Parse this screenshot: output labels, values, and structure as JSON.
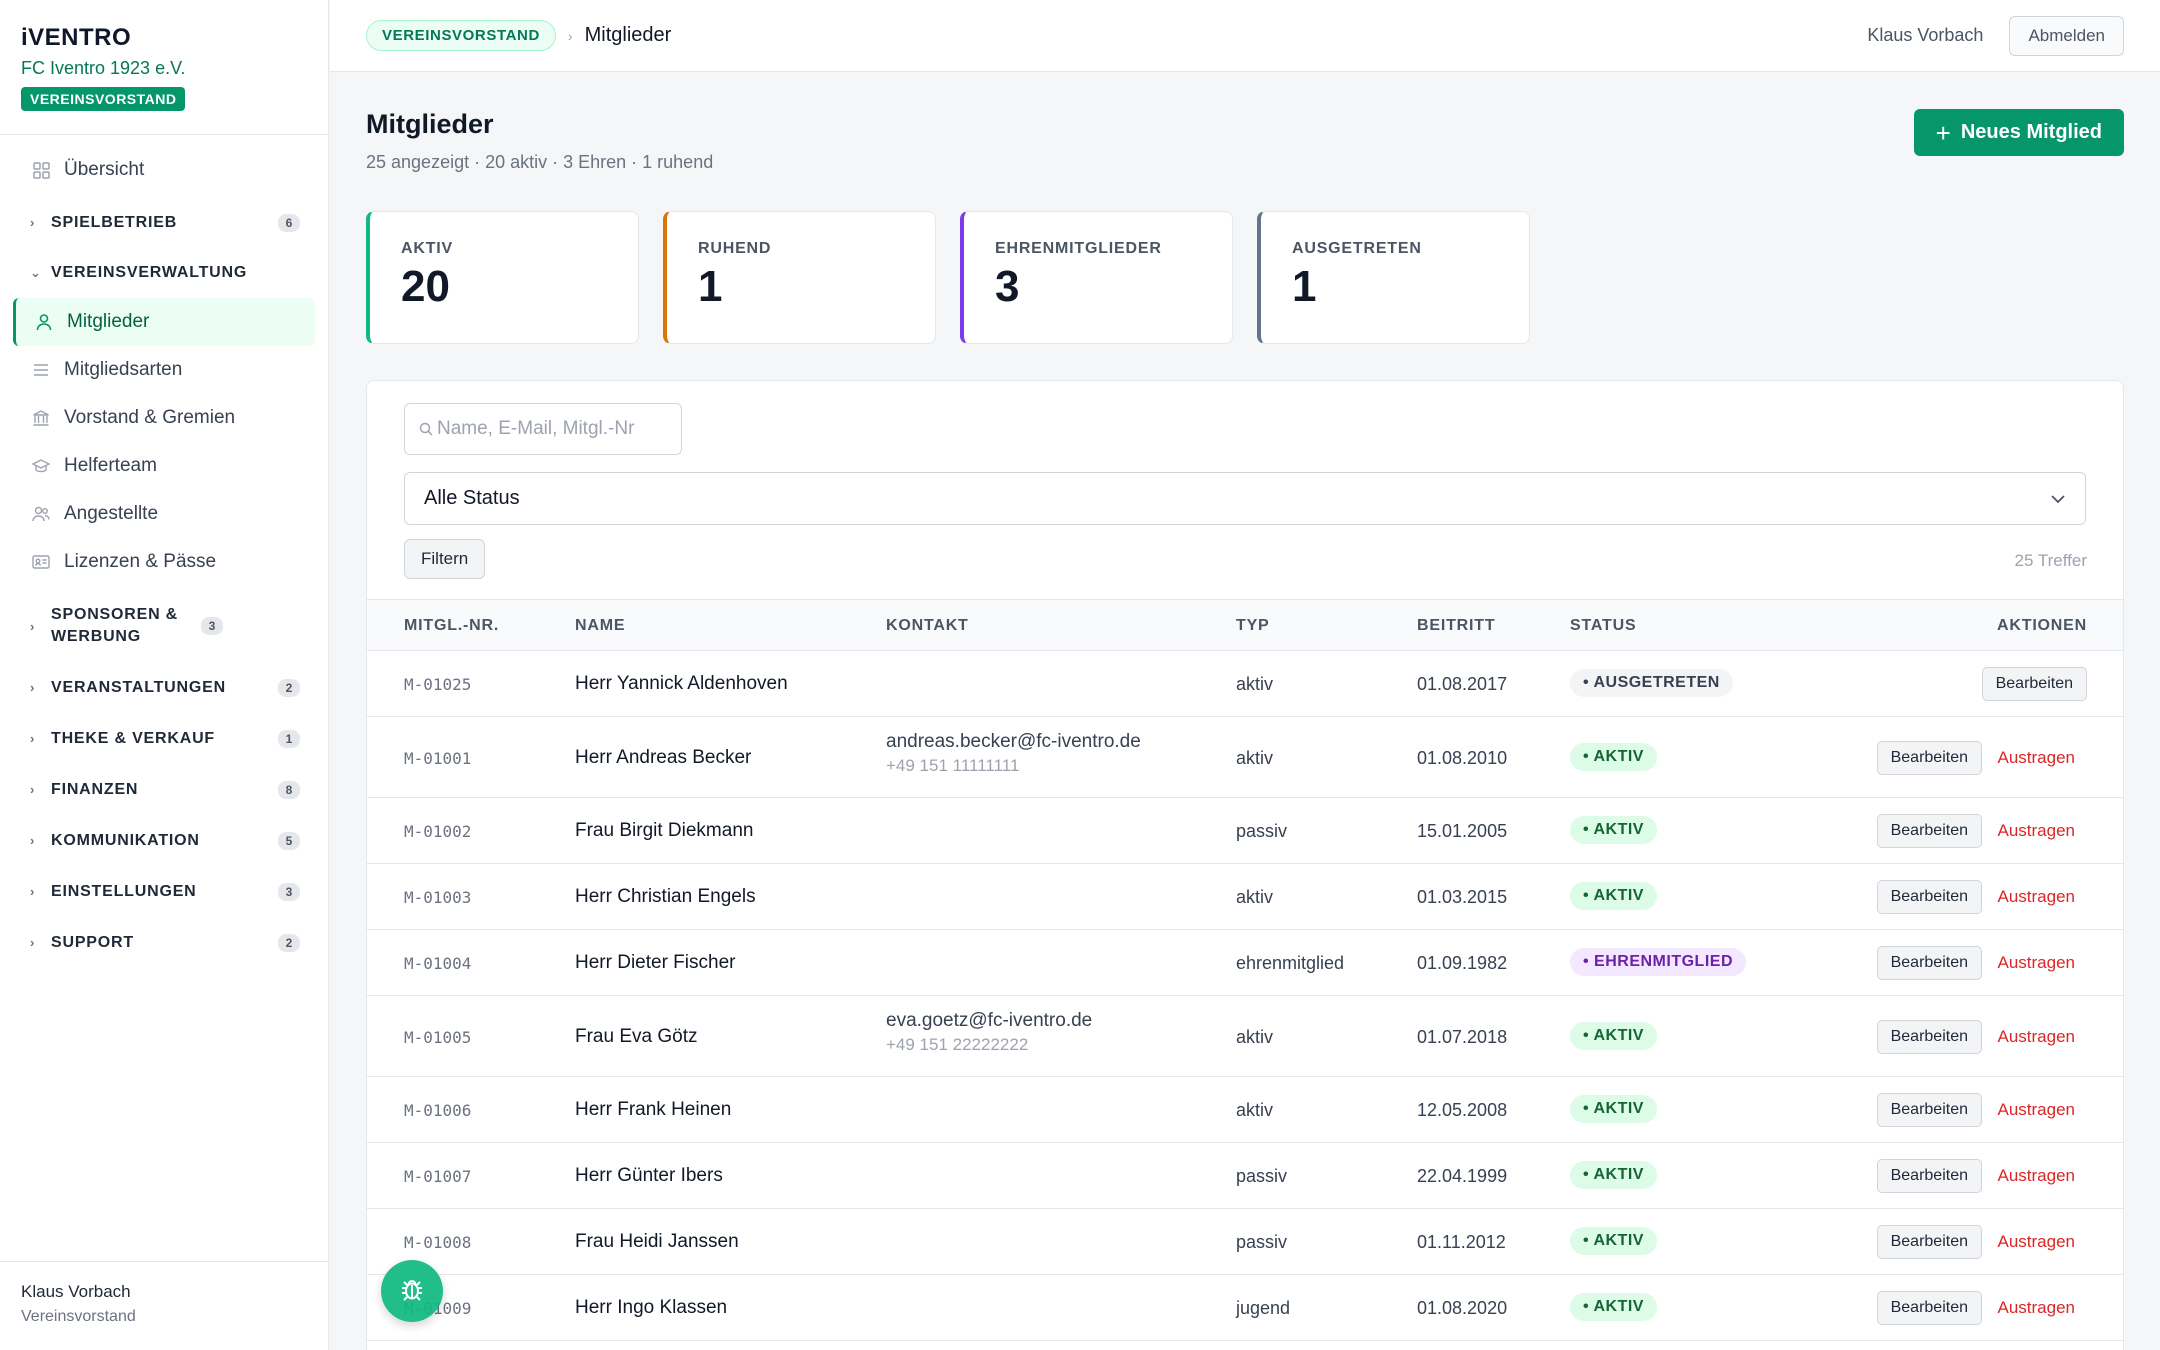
{
  "brand": {
    "logo": "iVENTRO",
    "club": "FC Iventro 1923 e.V.",
    "role_badge": "VEREINSVORSTAND"
  },
  "nav": {
    "overview": "Übersicht",
    "groups": [
      {
        "label": "SPIELBETRIEB",
        "count": "6"
      },
      {
        "label": "VEREINSVERWALTUNG"
      },
      {
        "label": "SPONSOREN & WERBUNG",
        "count": "3"
      },
      {
        "label": "VERANSTALTUNGEN",
        "count": "2"
      },
      {
        "label": "THEKE & VERKAUF",
        "count": "1"
      },
      {
        "label": "FINANZEN",
        "count": "8"
      },
      {
        "label": "KOMMUNIKATION",
        "count": "5"
      },
      {
        "label": "EINSTELLUNGEN",
        "count": "3"
      },
      {
        "label": "SUPPORT",
        "count": "2"
      }
    ],
    "items": [
      "Mitglieder",
      "Mitgliedsarten",
      "Vorstand & Gremien",
      "Helferteam",
      "Angestellte",
      "Lizenzen & Pässe"
    ]
  },
  "sidebar_footer": {
    "name": "Klaus Vorbach",
    "role": "Vereinsvorstand"
  },
  "topbar": {
    "badge": "VEREINSVORSTAND",
    "sep": "›",
    "current": "Mitglieder",
    "user": "Klaus Vorbach",
    "logout": "Abmelden"
  },
  "page": {
    "title": "Mitglieder",
    "subtitle": "25 angezeigt · 20 aktiv · 3 Ehren · 1 ruhend",
    "new_button": "Neues Mitglied"
  },
  "stats": [
    {
      "label": "AKTIV",
      "value": "20",
      "color": "#10b981"
    },
    {
      "label": "RUHEND",
      "value": "1",
      "color": "#d97706"
    },
    {
      "label": "EHRENMITGLIEDER",
      "value": "3",
      "color": "#7c3aed"
    },
    {
      "label": "AUSGETRETEN",
      "value": "1",
      "color": "#64748b"
    }
  ],
  "filters": {
    "search_placeholder": "Name, E-Mail, Mitgl.-Nr",
    "status_value": "Alle Status",
    "filter_button": "Filtern",
    "hits": "25 Treffer"
  },
  "table": {
    "headers": [
      "MITGL.-NR.",
      "NAME",
      "KONTAKT",
      "TYP",
      "BEITRITT",
      "STATUS",
      "AKTIONEN"
    ],
    "edit_label": "Bearbeiten",
    "remove_label": "Austragen",
    "rows": [
      {
        "nr": "M-01025",
        "name": "Herr Yannick Aldenhoven",
        "email": "",
        "phone": "",
        "typ": "aktiv",
        "date": "01.08.2017",
        "status": "• AUSGETRETEN",
        "kind": "ausgetreten",
        "removable": false
      },
      {
        "nr": "M-01001",
        "name": "Herr Andreas Becker",
        "email": "andreas.becker@fc-iventro.de",
        "phone": "+49 151 11111111",
        "typ": "aktiv",
        "date": "01.08.2010",
        "status": "• AKTIV",
        "kind": "aktiv",
        "removable": true
      },
      {
        "nr": "M-01002",
        "name": "Frau Birgit Diekmann",
        "email": "",
        "phone": "",
        "typ": "passiv",
        "date": "15.01.2005",
        "status": "• AKTIV",
        "kind": "aktiv",
        "removable": true
      },
      {
        "nr": "M-01003",
        "name": "Herr Christian Engels",
        "email": "",
        "phone": "",
        "typ": "aktiv",
        "date": "01.03.2015",
        "status": "• AKTIV",
        "kind": "aktiv",
        "removable": true
      },
      {
        "nr": "M-01004",
        "name": "Herr Dieter Fischer",
        "email": "",
        "phone": "",
        "typ": "ehrenmitglied",
        "date": "01.09.1982",
        "status": "• EHRENMITGLIED",
        "kind": "ehren",
        "removable": true
      },
      {
        "nr": "M-01005",
        "name": "Frau Eva Götz",
        "email": "eva.goetz@fc-iventro.de",
        "phone": "+49 151 22222222",
        "typ": "aktiv",
        "date": "01.07.2018",
        "status": "• AKTIV",
        "kind": "aktiv",
        "removable": true
      },
      {
        "nr": "M-01006",
        "name": "Herr Frank Heinen",
        "email": "",
        "phone": "",
        "typ": "aktiv",
        "date": "12.05.2008",
        "status": "• AKTIV",
        "kind": "aktiv",
        "removable": true
      },
      {
        "nr": "M-01007",
        "name": "Herr Günter Ibers",
        "email": "",
        "phone": "",
        "typ": "passiv",
        "date": "22.04.1999",
        "status": "• AKTIV",
        "kind": "aktiv",
        "removable": true
      },
      {
        "nr": "M-01008",
        "name": "Frau Heidi Janssen",
        "email": "",
        "phone": "",
        "typ": "passiv",
        "date": "01.11.2012",
        "status": "• AKTIV",
        "kind": "aktiv",
        "removable": true
      },
      {
        "nr": "M-01009",
        "name": "Herr Ingo Klassen",
        "email": "",
        "phone": "",
        "typ": "jugend",
        "date": "01.08.2020",
        "status": "• AKTIV",
        "kind": "aktiv",
        "removable": true
      }
    ]
  },
  "icons": {
    "bug": "bug-icon"
  }
}
